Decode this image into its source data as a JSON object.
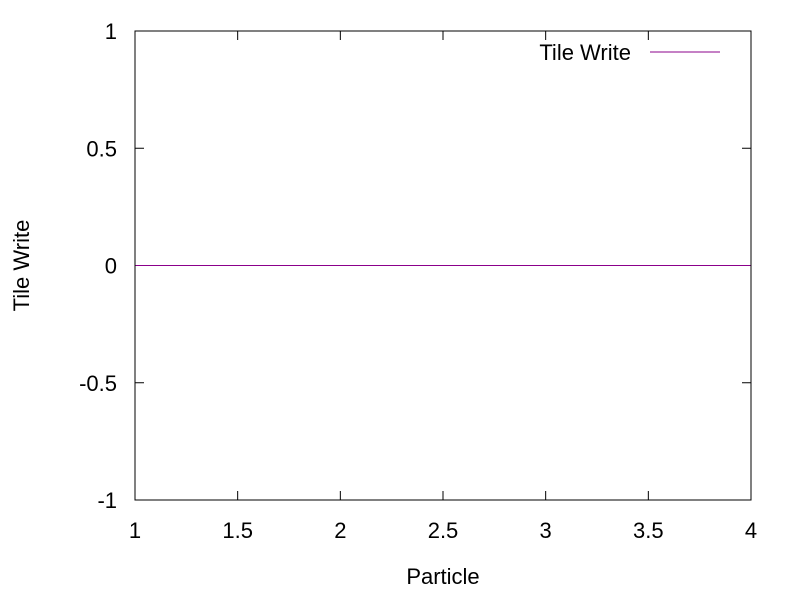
{
  "chart_data": {
    "type": "line",
    "title": "",
    "xlabel": "Particle",
    "ylabel": "Tile Write",
    "xlim": [
      1,
      4
    ],
    "ylim": [
      -1,
      1
    ],
    "xticks": [
      1,
      1.5,
      2,
      2.5,
      3,
      3.5,
      4
    ],
    "xtick_labels": [
      "1",
      "1.5",
      "2",
      "2.5",
      "3",
      "3.5",
      "4"
    ],
    "yticks": [
      -1,
      -0.5,
      0,
      0.5,
      1
    ],
    "ytick_labels": [
      "-1",
      "-0.5",
      "0",
      "0.5",
      "1"
    ],
    "grid": false,
    "legend_position": "top-right",
    "series": [
      {
        "name": "Tile Write",
        "color": "#8b008b",
        "x": [
          1,
          4
        ],
        "y": [
          0,
          0
        ]
      }
    ]
  }
}
